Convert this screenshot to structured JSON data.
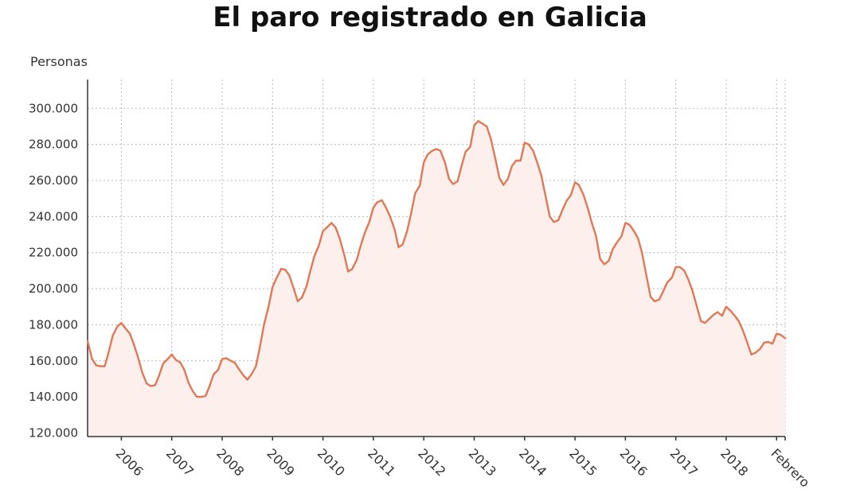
{
  "chart_data": {
    "type": "area",
    "title": "El paro registrado en Galicia",
    "ylabel": "Personas",
    "xlabel": "",
    "ylim": [
      118000,
      316000
    ],
    "y_ticks": [
      120000,
      140000,
      160000,
      180000,
      200000,
      220000,
      240000,
      260000,
      280000,
      300000
    ],
    "y_tick_labels": [
      "120.000",
      "140.000",
      "160.000",
      "180.000",
      "200.000",
      "220.000",
      "240.000",
      "260.000",
      "280.000",
      "300.000"
    ],
    "x_ticks": [
      2006,
      2007,
      2008,
      2009,
      2010,
      2011,
      2012,
      2013,
      2014,
      2015,
      2016,
      2017,
      2018,
      2019
    ],
    "x_tick_labels": [
      "2006",
      "2007",
      "2008",
      "2009",
      "2010",
      "2011",
      "2012",
      "2013",
      "2014",
      "2015",
      "2016",
      "2017",
      "2018",
      "Febrero"
    ],
    "xlim": [
      2005.33,
      2019.17
    ],
    "grid": true,
    "colors": {
      "line": "#e07856",
      "fill": "#fdf0ec"
    },
    "series": [
      {
        "values": [
          [
            2005.33,
            171000
          ],
          [
            2005.42,
            161000
          ],
          [
            2005.5,
            157500
          ],
          [
            2005.58,
            157000
          ],
          [
            2005.67,
            157000
          ],
          [
            2005.75,
            165000
          ],
          [
            2005.83,
            174000
          ],
          [
            2005.92,
            179000
          ],
          [
            2006.0,
            181000
          ],
          [
            2006.08,
            178000
          ],
          [
            2006.17,
            175000
          ],
          [
            2006.25,
            169000
          ],
          [
            2006.33,
            162000
          ],
          [
            2006.42,
            153000
          ],
          [
            2006.5,
            147500
          ],
          [
            2006.58,
            146000
          ],
          [
            2006.67,
            146500
          ],
          [
            2006.75,
            152000
          ],
          [
            2006.83,
            158500
          ],
          [
            2006.92,
            161000
          ],
          [
            2007.0,
            163500
          ],
          [
            2007.08,
            160500
          ],
          [
            2007.17,
            159000
          ],
          [
            2007.25,
            155000
          ],
          [
            2007.33,
            148000
          ],
          [
            2007.42,
            143000
          ],
          [
            2007.5,
            140000
          ],
          [
            2007.58,
            140000
          ],
          [
            2007.67,
            140500
          ],
          [
            2007.75,
            146000
          ],
          [
            2007.83,
            152500
          ],
          [
            2007.92,
            155000
          ],
          [
            2008.0,
            161000
          ],
          [
            2008.08,
            161500
          ],
          [
            2008.17,
            160000
          ],
          [
            2008.25,
            159000
          ],
          [
            2008.33,
            155500
          ],
          [
            2008.42,
            152000
          ],
          [
            2008.5,
            149500
          ],
          [
            2008.58,
            152500
          ],
          [
            2008.67,
            157000
          ],
          [
            2008.75,
            168000
          ],
          [
            2008.83,
            180000
          ],
          [
            2008.92,
            190000
          ],
          [
            2009.0,
            201000
          ],
          [
            2009.08,
            206000
          ],
          [
            2009.17,
            211000
          ],
          [
            2009.25,
            210500
          ],
          [
            2009.33,
            207500
          ],
          [
            2009.42,
            200000
          ],
          [
            2009.5,
            193000
          ],
          [
            2009.58,
            195000
          ],
          [
            2009.67,
            201000
          ],
          [
            2009.75,
            210000
          ],
          [
            2009.83,
            218000
          ],
          [
            2009.92,
            224000
          ],
          [
            2010.0,
            232000
          ],
          [
            2010.08,
            234000
          ],
          [
            2010.17,
            236500
          ],
          [
            2010.25,
            234000
          ],
          [
            2010.33,
            228000
          ],
          [
            2010.42,
            219000
          ],
          [
            2010.5,
            209500
          ],
          [
            2010.58,
            211000
          ],
          [
            2010.67,
            216000
          ],
          [
            2010.75,
            224000
          ],
          [
            2010.83,
            231000
          ],
          [
            2010.92,
            237000
          ],
          [
            2011.0,
            245000
          ],
          [
            2011.08,
            248000
          ],
          [
            2011.17,
            249000
          ],
          [
            2011.25,
            245000
          ],
          [
            2011.33,
            240000
          ],
          [
            2011.42,
            233000
          ],
          [
            2011.5,
            223000
          ],
          [
            2011.58,
            224500
          ],
          [
            2011.67,
            232000
          ],
          [
            2011.75,
            242000
          ],
          [
            2011.83,
            253000
          ],
          [
            2011.92,
            257000
          ],
          [
            2012.0,
            270000
          ],
          [
            2012.08,
            274500
          ],
          [
            2012.17,
            276500
          ],
          [
            2012.25,
            277500
          ],
          [
            2012.33,
            276500
          ],
          [
            2012.42,
            270000
          ],
          [
            2012.5,
            261000
          ],
          [
            2012.58,
            258000
          ],
          [
            2012.67,
            259500
          ],
          [
            2012.75,
            268000
          ],
          [
            2012.83,
            276000
          ],
          [
            2012.92,
            278500
          ],
          [
            2013.0,
            290500
          ],
          [
            2013.08,
            293000
          ],
          [
            2013.17,
            291500
          ],
          [
            2013.25,
            290000
          ],
          [
            2013.33,
            283000
          ],
          [
            2013.42,
            272000
          ],
          [
            2013.5,
            261500
          ],
          [
            2013.58,
            257500
          ],
          [
            2013.67,
            261000
          ],
          [
            2013.75,
            268000
          ],
          [
            2013.83,
            271000
          ],
          [
            2013.92,
            271000
          ],
          [
            2014.0,
            281000
          ],
          [
            2014.08,
            280000
          ],
          [
            2014.17,
            276500
          ],
          [
            2014.25,
            270000
          ],
          [
            2014.33,
            263000
          ],
          [
            2014.42,
            251000
          ],
          [
            2014.5,
            240000
          ],
          [
            2014.58,
            237000
          ],
          [
            2014.67,
            238000
          ],
          [
            2014.75,
            243500
          ],
          [
            2014.83,
            248500
          ],
          [
            2014.92,
            252000
          ],
          [
            2015.0,
            259000
          ],
          [
            2015.08,
            257500
          ],
          [
            2015.17,
            252000
          ],
          [
            2015.25,
            245000
          ],
          [
            2015.33,
            237000
          ],
          [
            2015.42,
            229000
          ],
          [
            2015.5,
            216500
          ],
          [
            2015.58,
            213500
          ],
          [
            2015.67,
            215500
          ],
          [
            2015.75,
            222000
          ],
          [
            2015.83,
            225500
          ],
          [
            2015.92,
            229000
          ],
          [
            2016.0,
            236500
          ],
          [
            2016.08,
            235500
          ],
          [
            2016.17,
            232000
          ],
          [
            2016.25,
            228000
          ],
          [
            2016.33,
            220000
          ],
          [
            2016.42,
            207000
          ],
          [
            2016.5,
            195500
          ],
          [
            2016.58,
            193000
          ],
          [
            2016.67,
            194000
          ],
          [
            2016.75,
            198500
          ],
          [
            2016.83,
            203500
          ],
          [
            2016.92,
            206000
          ],
          [
            2017.0,
            212000
          ],
          [
            2017.08,
            212000
          ],
          [
            2017.17,
            210000
          ],
          [
            2017.25,
            205000
          ],
          [
            2017.33,
            199000
          ],
          [
            2017.42,
            190000
          ],
          [
            2017.5,
            182000
          ],
          [
            2017.58,
            181000
          ],
          [
            2017.67,
            183500
          ],
          [
            2017.75,
            185500
          ],
          [
            2017.83,
            187000
          ],
          [
            2017.92,
            185000
          ],
          [
            2018.0,
            190000
          ],
          [
            2018.08,
            188000
          ],
          [
            2018.17,
            185000
          ],
          [
            2018.25,
            182000
          ],
          [
            2018.33,
            177000
          ],
          [
            2018.42,
            170000
          ],
          [
            2018.5,
            163500
          ],
          [
            2018.58,
            164500
          ],
          [
            2018.67,
            166500
          ],
          [
            2018.75,
            170000
          ],
          [
            2018.83,
            170500
          ],
          [
            2018.92,
            169500
          ],
          [
            2019.0,
            175000
          ],
          [
            2019.08,
            174500
          ],
          [
            2019.17,
            172500
          ]
        ]
      }
    ]
  }
}
